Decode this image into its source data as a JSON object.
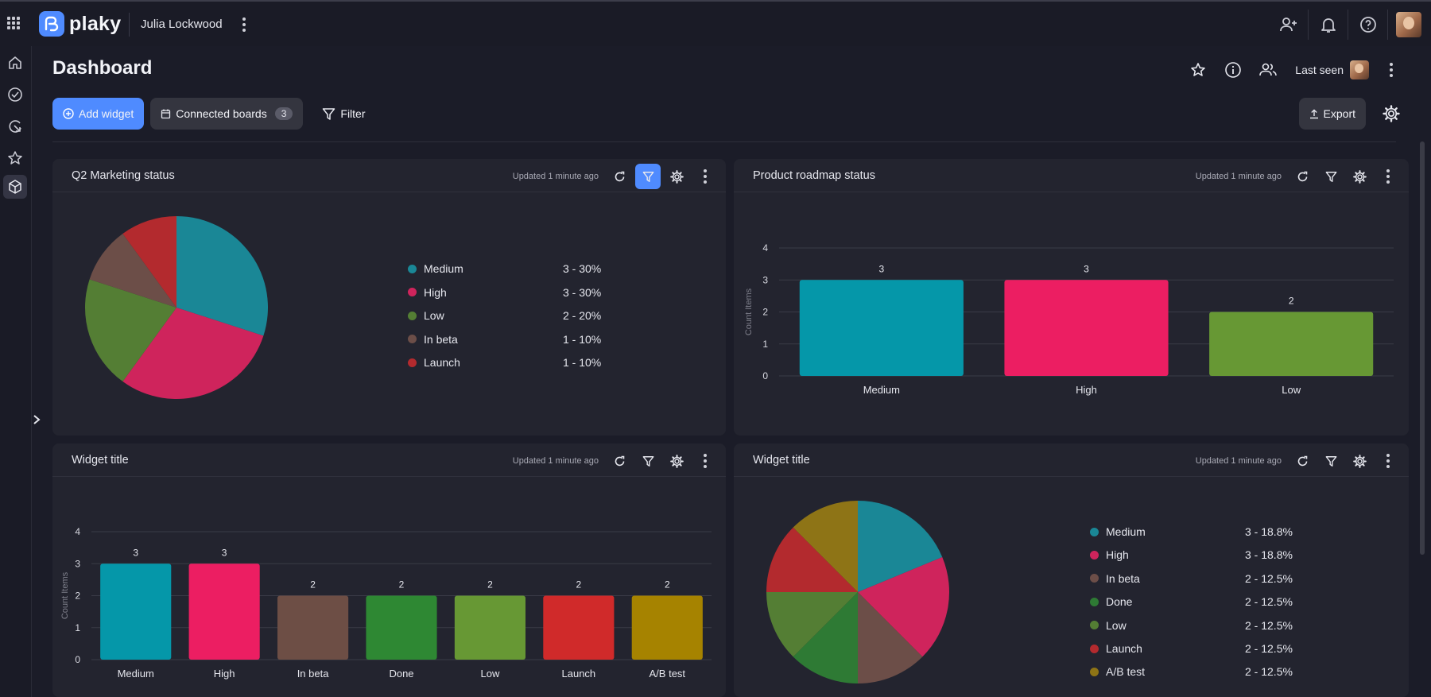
{
  "topbar": {
    "logo_text": "plaky",
    "user_name": "Julia Lockwood"
  },
  "header": {
    "title": "Dashboard",
    "last_seen_label": "Last seen"
  },
  "toolbar": {
    "add_widget_label": "Add widget",
    "connected_boards_label": "Connected boards",
    "connected_boards_count": "3",
    "filter_label": "Filter",
    "export_label": "Export"
  },
  "widgets": [
    {
      "title": "Q2 Marketing status",
      "updated": "Updated 1 minute ago",
      "filter_active": true
    },
    {
      "title": "Product roadmap status",
      "updated": "Updated 1 minute ago",
      "filter_active": false
    },
    {
      "title": "Widget title",
      "updated": "Updated 1 minute ago",
      "filter_active": false
    },
    {
      "title": "Widget title",
      "updated": "Updated 1 minute ago",
      "filter_active": false
    }
  ],
  "chart_data": [
    {
      "type": "pie",
      "categories": [
        "Medium",
        "High",
        "Low",
        "In beta",
        "Launch"
      ],
      "values": [
        3,
        3,
        2,
        1,
        1
      ],
      "labels": [
        "3 - 30%",
        "3 - 30%",
        "2 - 20%",
        "1 - 10%",
        "1 - 10%"
      ],
      "colors": [
        "#1a8796",
        "#cf245c",
        "#547e34",
        "#6c4e48",
        "#b32a2e"
      ],
      "legend": "right"
    },
    {
      "type": "bar",
      "categories": [
        "Medium",
        "High",
        "Low"
      ],
      "values": [
        3,
        3,
        2
      ],
      "colors": [
        "#0597a9",
        "#ec1e62",
        "#679834"
      ],
      "ylabel": "Count Items",
      "ylim": [
        0,
        4
      ],
      "yticks": [
        "0",
        "1",
        "2",
        "3",
        "4"
      ],
      "grid": true
    },
    {
      "type": "bar",
      "categories": [
        "Medium",
        "High",
        "In beta",
        "Done",
        "Low",
        "Launch",
        "A/B test"
      ],
      "values": [
        3,
        3,
        2,
        2,
        2,
        2,
        2
      ],
      "colors": [
        "#0597a9",
        "#ec1e62",
        "#6d4e45",
        "#2e8833",
        "#679834",
        "#d02a2a",
        "#a68300"
      ],
      "ylabel": "Count Items",
      "ylim": [
        0,
        4
      ],
      "yticks": [
        "0",
        "1",
        "2",
        "3",
        "4"
      ],
      "grid": true
    },
    {
      "type": "pie",
      "categories": [
        "Medium",
        "High",
        "In beta",
        "Done",
        "Low",
        "Launch",
        "A/B test"
      ],
      "values": [
        3,
        3,
        2,
        2,
        2,
        2,
        2
      ],
      "labels": [
        "3 - 18.8%",
        "3 - 18.8%",
        "2 - 12.5%",
        "2 - 12.5%",
        "2 - 12.5%",
        "2 - 12.5%",
        "2 - 12.5%"
      ],
      "colors": [
        "#1a8796",
        "#cf245c",
        "#6c4e48",
        "#2e7a34",
        "#547e34",
        "#b32a2e",
        "#8e7416"
      ],
      "legend": "right"
    }
  ]
}
